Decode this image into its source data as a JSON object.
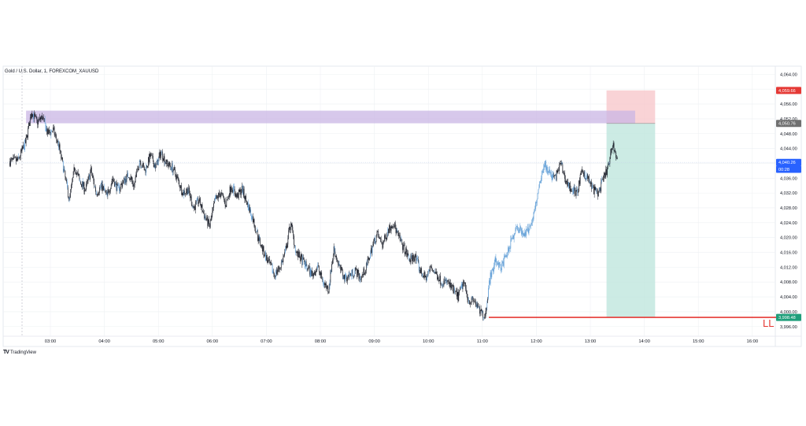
{
  "chart_title": "Gold / U.S. Dollar, 1, FOREXCOM_XAUUSD",
  "brand": {
    "logo": "TV",
    "name": "TradingView"
  },
  "colors": {
    "up": "#131722",
    "down": "#131722",
    "wick": "#131722",
    "blue_candle": "#5b9bd5",
    "grid": "#eef0f3",
    "zone": "#c9b6e4",
    "stop_box": "#f8c8cc",
    "target_box": "#bfe6dd",
    "ll_line": "#e53935",
    "price_line": "#c5d3ea"
  },
  "annotation": {
    "ll_label": "LL"
  },
  "chart_data": {
    "type": "candlestick",
    "title": "Gold / U.S. Dollar, 1, FOREXCOM_XAUUSD",
    "xlabel": "",
    "ylabel": "",
    "grid": true,
    "ylim": [
      3992,
      4068
    ],
    "x_ticks": [
      "03:00",
      "04:00",
      "05:00",
      "06:00",
      "07:00",
      "08:00",
      "09:00",
      "10:00",
      "11:00",
      "12:00",
      "13:00",
      "14:00",
      "15:00",
      "16:00"
    ],
    "x_hours": [
      3,
      4,
      5,
      6,
      7,
      8,
      9,
      10,
      11,
      12,
      13,
      14,
      15,
      16
    ],
    "y_ticks": [
      "4,064.00",
      "4,060.00",
      "4,056.00",
      "4,052.00",
      "4,048.00",
      "4,044.00",
      "4,040.00",
      "4,036.00",
      "4,032.00",
      "4,028.00",
      "4,024.00",
      "4,020.00",
      "4,016.00",
      "4,012.00",
      "4,008.00",
      "4,004.00",
      "4,000.00",
      "3,996.00"
    ],
    "y_tick_values": [
      4064,
      4060,
      4056,
      4052,
      4048,
      4044,
      4040,
      4036,
      4032,
      4028,
      4024,
      4020,
      4016,
      4012,
      4008,
      4004,
      4000,
      3996
    ],
    "price_labels": [
      {
        "text": "4,059.66",
        "value": 4059.66,
        "color": "#e53935"
      },
      {
        "text": "4,050.76",
        "value": 4050.76,
        "color": "#707070"
      },
      {
        "text": "4,040.26",
        "value": 4040.26,
        "color": "#2962ff"
      },
      {
        "text": "00:28",
        "value": 4038.4,
        "color": "#2962ff"
      },
      {
        "text": "3,998.48",
        "value": 3998.48,
        "color": "#1f9e7a"
      }
    ],
    "path_points": [
      [
        2.25,
        4040.5
      ],
      [
        2.4,
        4040.8
      ],
      [
        2.55,
        4046
      ],
      [
        2.65,
        4054
      ],
      [
        2.75,
        4051
      ],
      [
        2.85,
        4052.5
      ],
      [
        2.95,
        4048
      ],
      [
        3.05,
        4049
      ],
      [
        3.15,
        4045
      ],
      [
        3.25,
        4038
      ],
      [
        3.35,
        4030
      ],
      [
        3.45,
        4039
      ],
      [
        3.55,
        4035
      ],
      [
        3.65,
        4033
      ],
      [
        3.75,
        4038
      ],
      [
        3.85,
        4032
      ],
      [
        3.95,
        4034
      ],
      [
        4.05,
        4031
      ],
      [
        4.15,
        4036
      ],
      [
        4.25,
        4033
      ],
      [
        4.35,
        4035
      ],
      [
        4.45,
        4037
      ],
      [
        4.55,
        4034
      ],
      [
        4.65,
        4041
      ],
      [
        4.75,
        4038
      ],
      [
        4.85,
        4042
      ],
      [
        4.95,
        4039
      ],
      [
        5.05,
        4043
      ],
      [
        5.15,
        4040
      ],
      [
        5.25,
        4039
      ],
      [
        5.35,
        4036
      ],
      [
        5.45,
        4032
      ],
      [
        5.55,
        4033
      ],
      [
        5.65,
        4028
      ],
      [
        5.75,
        4030
      ],
      [
        5.85,
        4026
      ],
      [
        5.95,
        4023
      ],
      [
        6.05,
        4030
      ],
      [
        6.15,
        4032
      ],
      [
        6.25,
        4029
      ],
      [
        6.35,
        4034
      ],
      [
        6.45,
        4031
      ],
      [
        6.55,
        4033
      ],
      [
        6.65,
        4029
      ],
      [
        6.75,
        4025
      ],
      [
        6.85,
        4020
      ],
      [
        6.95,
        4016
      ],
      [
        7.05,
        4013
      ],
      [
        7.15,
        4010
      ],
      [
        7.25,
        4012
      ],
      [
        7.35,
        4016
      ],
      [
        7.45,
        4024
      ],
      [
        7.55,
        4016
      ],
      [
        7.65,
        4014
      ],
      [
        7.75,
        4012
      ],
      [
        7.85,
        4010
      ],
      [
        7.95,
        4012
      ],
      [
        8.05,
        4008
      ],
      [
        8.15,
        4006
      ],
      [
        8.25,
        4017
      ],
      [
        8.35,
        4012
      ],
      [
        8.45,
        4009
      ],
      [
        8.55,
        4010
      ],
      [
        8.65,
        4011
      ],
      [
        8.75,
        4009
      ],
      [
        8.85,
        4012
      ],
      [
        8.95,
        4017
      ],
      [
        9.05,
        4021
      ],
      [
        9.15,
        4018
      ],
      [
        9.25,
        4022
      ],
      [
        9.35,
        4024
      ],
      [
        9.45,
        4020
      ],
      [
        9.55,
        4017
      ],
      [
        9.65,
        4014
      ],
      [
        9.75,
        4015
      ],
      [
        9.85,
        4011
      ],
      [
        9.95,
        4009
      ],
      [
        10.05,
        4012
      ],
      [
        10.15,
        4010
      ],
      [
        10.25,
        4008
      ],
      [
        10.35,
        4008
      ],
      [
        10.45,
        4006
      ],
      [
        10.55,
        4004
      ],
      [
        10.65,
        4008
      ],
      [
        10.75,
        4003
      ],
      [
        10.85,
        4003
      ],
      [
        10.95,
        4000
      ],
      [
        11.05,
        3999
      ],
      [
        11.15,
        4010
      ],
      [
        11.25,
        4014
      ],
      [
        11.35,
        4012
      ],
      [
        11.45,
        4015
      ],
      [
        11.55,
        4020
      ],
      [
        11.65,
        4023
      ],
      [
        11.75,
        4021
      ],
      [
        11.85,
        4022
      ],
      [
        11.95,
        4026
      ],
      [
        12.05,
        4034
      ],
      [
        12.15,
        4040
      ],
      [
        12.25,
        4037
      ],
      [
        12.35,
        4036
      ],
      [
        12.45,
        4040
      ],
      [
        12.55,
        4035
      ],
      [
        12.65,
        4033
      ],
      [
        12.75,
        4032
      ],
      [
        12.85,
        4038
      ],
      [
        12.95,
        4036
      ],
      [
        13.05,
        4033
      ],
      [
        13.15,
        4032
      ],
      [
        13.25,
        4036
      ],
      [
        13.35,
        4040
      ],
      [
        13.42,
        4045.5
      ],
      [
        13.5,
        4040.3
      ]
    ],
    "zones": {
      "supply_zone": {
        "x_start": 2.55,
        "x_end": 13.83,
        "y_low": 4050.8,
        "y_high": 4054.2
      },
      "stop_box": {
        "x_start": 13.3,
        "x_end": 14.2,
        "y_low": 4050.76,
        "y_high": 4059.66
      },
      "target_box": {
        "x_start": 13.3,
        "x_end": 14.2,
        "y_low": 3998.48,
        "y_high": 4050.76
      },
      "ll_line": {
        "x_start": 11.12,
        "x_end": 16.5,
        "y": 3998.48
      },
      "current_price": 4040.26
    }
  }
}
